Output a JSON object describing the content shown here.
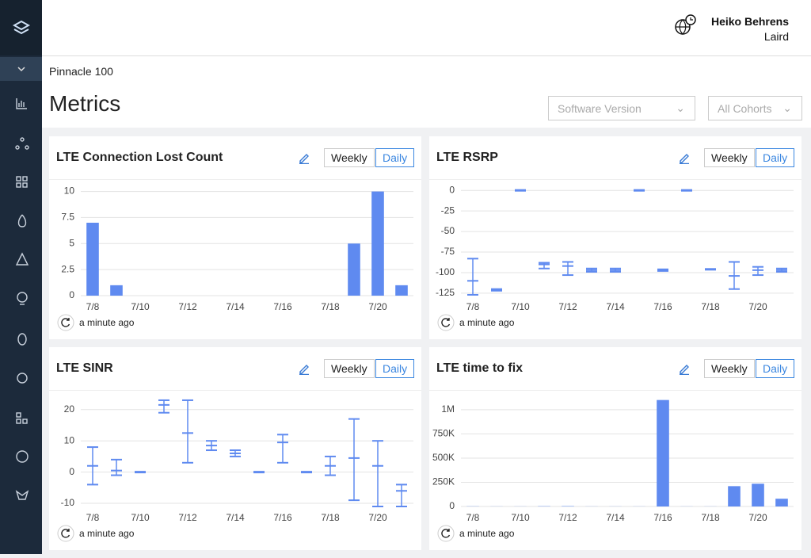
{
  "header": {
    "user": "Heiko Behrens",
    "org": "Laird"
  },
  "breadcrumb": "Pinnacle 100",
  "title": "Metrics",
  "filters": [
    "Software Version",
    "All Cohorts"
  ],
  "panels": [
    {
      "toggle": [
        "Weekly",
        "Daily"
      ],
      "updated": "a minute ago"
    },
    {
      "toggle": [
        "Weekly",
        "Daily"
      ],
      "updated": "a minute ago"
    },
    {
      "toggle": [
        "Weekly",
        "Daily"
      ],
      "updated": "a minute ago"
    },
    {
      "toggle": [
        "Weekly",
        "Daily"
      ],
      "updated": "a minute ago"
    }
  ],
  "chart_data": [
    {
      "type": "bar",
      "title": "LTE Connection Lost Count",
      "categories": [
        "7/8",
        null,
        "7/10",
        null,
        "7/12",
        null,
        "7/14",
        null,
        "7/16",
        null,
        "7/18",
        null,
        "7/20",
        null
      ],
      "values": [
        7,
        1,
        0,
        0,
        0,
        0,
        0,
        0,
        0,
        0,
        0,
        5,
        10,
        1
      ],
      "color": "#5f8af0",
      "ylim": [
        0,
        10.5
      ],
      "yticks": [
        0,
        2.5,
        5,
        7.5,
        10
      ],
      "grid": true
    },
    {
      "type": "box",
      "title": "LTE RSRP",
      "categories": [
        "7/8",
        null,
        "7/10",
        null,
        "7/12",
        null,
        "7/14",
        null,
        "7/16",
        null,
        "7/18",
        null,
        "7/20",
        null
      ],
      "low": [
        -127,
        -122,
        0,
        -95,
        -103,
        -99,
        -99,
        0,
        -98,
        0,
        -96,
        -120,
        -103,
        -99
      ],
      "mid": [
        -110,
        -121,
        0,
        -90,
        -92,
        -97,
        -97,
        0,
        -97,
        0,
        -96,
        -104,
        -97,
        -97
      ],
      "high": [
        -83,
        -120,
        0,
        -88,
        -87,
        -95,
        -95,
        0,
        -96,
        0,
        -96,
        -87,
        -93,
        -95
      ],
      "color": "#5f8af0",
      "ylim": [
        -128,
        5
      ],
      "yticks": [
        0,
        -25,
        -50,
        -75,
        -100,
        -125
      ],
      "grid": true
    },
    {
      "type": "box",
      "title": "LTE SINR",
      "categories": [
        "7/8",
        null,
        "7/10",
        null,
        "7/12",
        null,
        "7/14",
        null,
        "7/16",
        null,
        "7/18",
        null,
        "7/20",
        null
      ],
      "low": [
        -4,
        -1,
        0,
        19,
        3,
        7,
        5,
        0,
        3,
        0,
        -1,
        -9,
        -11,
        -11
      ],
      "mid": [
        2,
        0.5,
        0,
        21.5,
        12.5,
        8.5,
        6,
        0,
        9.5,
        0,
        2,
        4.5,
        2,
        -6
      ],
      "high": [
        8,
        4,
        0,
        23,
        23,
        10,
        7,
        0,
        12,
        0,
        5,
        17,
        10,
        -4
      ],
      "color": "#5f8af0",
      "ylim": [
        -11,
        24
      ],
      "yticks": [
        -10,
        0,
        10,
        20
      ],
      "grid": true
    },
    {
      "type": "bar",
      "title": "LTE time to fix",
      "categories": [
        "7/8",
        null,
        "7/10",
        null,
        "7/12",
        null,
        "7/14",
        null,
        "7/16",
        null,
        "7/18",
        null,
        "7/20",
        null
      ],
      "values": [
        2000,
        1000,
        1000,
        3000,
        4000,
        1000,
        1000,
        1000,
        1100000,
        1000,
        1000,
        210000,
        235000,
        80000
      ],
      "color": "#5f8af0",
      "ylim": [
        0,
        1130000
      ],
      "yticks": [
        0,
        {
          "value": 250000,
          "label": "250K"
        },
        {
          "value": 500000,
          "label": "500K"
        },
        {
          "value": 750000,
          "label": "750K"
        },
        {
          "value": 1000000,
          "label": "1M"
        }
      ],
      "grid": true
    }
  ]
}
